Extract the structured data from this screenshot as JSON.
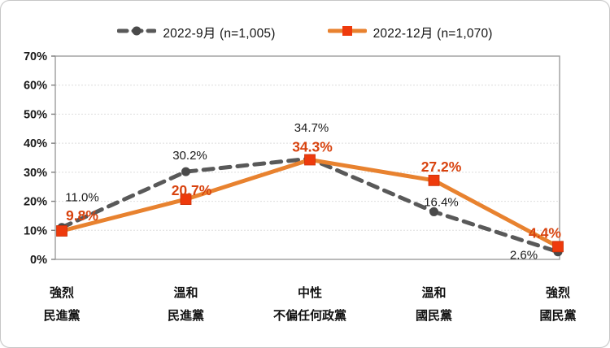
{
  "chart_data": {
    "type": "line",
    "title": "",
    "categories": [
      {
        "line1": "強烈",
        "line2": "民進黨"
      },
      {
        "line1": "溫和",
        "line2": "民進黨"
      },
      {
        "line1": "中性",
        "line2": "不偏任何政黨"
      },
      {
        "line1": "溫和",
        "line2": "國民黨"
      },
      {
        "line1": "強烈",
        "line2": "國民黨"
      }
    ],
    "series": [
      {
        "name": "2022-9月  (n=1,005)",
        "color": "#595959",
        "marker": "circle",
        "marker_color": "#4a4a4a",
        "line_style": "dashed",
        "values": [
          11.0,
          30.2,
          34.7,
          16.4,
          2.6
        ],
        "labels": [
          "11.0%",
          "30.2%",
          "34.7%",
          "16.4%",
          "2.6%"
        ],
        "label_color": "#1a1a1a"
      },
      {
        "name": "2022-12月  (n=1,070)",
        "color": "#e8822f",
        "marker": "square",
        "marker_color": "#ee3a0c",
        "line_style": "solid",
        "values": [
          9.8,
          20.7,
          34.3,
          27.2,
          4.4
        ],
        "labels": [
          "9.8%",
          "20.7%",
          "34.3%",
          "27.2%",
          "4.4%"
        ],
        "label_color": "#d8430f"
      }
    ],
    "ylim": [
      0,
      70
    ],
    "ytick_labels": [
      "0%",
      "10%",
      "20%",
      "30%",
      "40%",
      "50%",
      "60%",
      "70%"
    ],
    "grid": true,
    "legend_position": "top"
  }
}
